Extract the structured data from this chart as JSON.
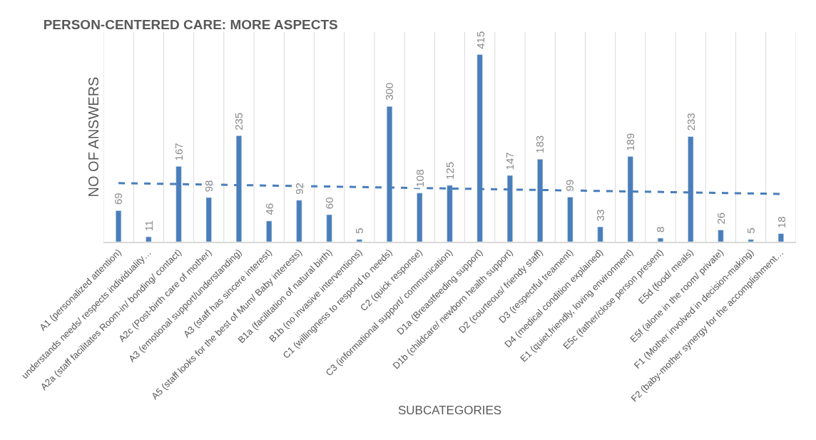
{
  "chart_data": {
    "type": "bar",
    "title": "PERSON-CENTERED CARE: MORE ASPECTS",
    "xlabel": "SUBCATEGORIES",
    "ylabel": "NO OF ANSWERS",
    "categories": [
      "A1 (personalized attention)",
      "understands needs/ respects individuality…",
      "A2a (staff facilitates Room-in/ bonding/ contact)",
      "A2c (Post-birth care of mother)",
      "A3 (emotional support/understanding)",
      "A3 (staff has sincere interest)",
      "A5 (staff looks for the best of Mum/ Baby interests)",
      "B1a (facilitation of natural birth)",
      "B1b (no invasive interventions)",
      "C1 (willingness to respond to needs)",
      "C2 (quick response)",
      "C3 (informational support/ communication)",
      "D1a (Breastfeeding support)",
      "D1b (childcare/ newborn health support)",
      "D2 (courteous/ friendy staff)",
      "D3 (respectful treament)",
      "D4 (medical condition explained)",
      "E1 (quiet,friendly, loving environment)",
      "E5c (father/close person present)",
      "E5d (food/ meals)",
      "E5f (alone in the room/ private)",
      "F1 (Mother involved in decision-making)",
      "F2 (baby-mother synergy for the accomplishment…"
    ],
    "series": [
      {
        "color": "#4a7ebb",
        "values": [
          69,
          11,
          167,
          98,
          235,
          46,
          92,
          60,
          5,
          300,
          108,
          125,
          415,
          147,
          183,
          99,
          33,
          189,
          8,
          233,
          26,
          5,
          18
        ],
        "value_labels": [
          "69",
          "11",
          "167",
          "98",
          "235",
          "46",
          "92",
          "60",
          "5",
          "300",
          "108",
          "125",
          "415",
          "147",
          "183",
          "99",
          "33",
          "189",
          "8",
          "233",
          "26",
          "5",
          "18"
        ]
      },
      {
        "type": "line",
        "color": "#4a7ebb",
        "line_style": "dashed",
        "x": [
          "A1 (personalized attention)",
          "F2 (baby-mother synergy for the accomplishment…"
        ],
        "values": [
          130,
          106
        ]
      }
    ],
    "grid": "x",
    "legend": false,
    "tick_labels": "x"
  }
}
